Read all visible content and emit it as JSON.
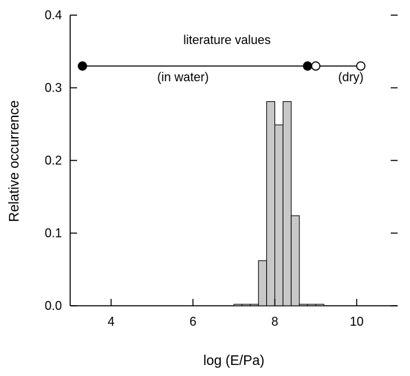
{
  "chart_data": {
    "type": "bar",
    "xlabel": "log (E/Pa)",
    "ylabel": "Relative occurrence",
    "xlim": [
      3.0,
      11.0
    ],
    "ylim": [
      0.0,
      0.4
    ],
    "xticks": [
      4,
      6,
      8,
      10
    ],
    "xtick_labels": [
      "4",
      "6",
      "8",
      "10"
    ],
    "yticks": [
      0.0,
      0.1,
      0.2,
      0.3,
      0.4
    ],
    "ytick_labels": [
      "0.0",
      "0.1",
      "0.2",
      "0.3",
      "0.4"
    ],
    "grid": false,
    "histogram": {
      "bin_width": 0.2,
      "bin_edges": [
        7.0,
        7.2,
        7.4,
        7.6,
        7.8,
        8.0,
        8.2,
        8.4,
        8.6,
        8.8,
        9.0,
        9.2
      ],
      "values": [
        0.002,
        0.002,
        0.002,
        0.062,
        0.281,
        0.249,
        0.281,
        0.124,
        0.002,
        0.002,
        0.002
      ],
      "fill": "#c8c8c8",
      "stroke": "#000000"
    },
    "ranges": [
      {
        "label": "(in water)",
        "x_start": 3.3,
        "x_end": 8.8,
        "y": 0.33,
        "marker": "filled"
      },
      {
        "label": "(dry)",
        "x_start": 9.0,
        "x_end": 10.1,
        "y": 0.33,
        "marker": "open"
      }
    ],
    "annotation_title": "literature values"
  }
}
